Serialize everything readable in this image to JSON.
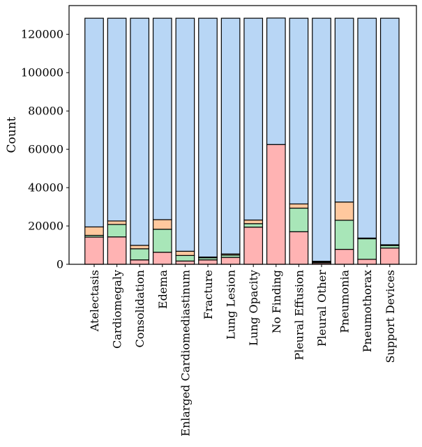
{
  "chart_data": {
    "type": "bar",
    "stacked": true,
    "title": "",
    "xlabel": "",
    "ylabel": "Count",
    "ylim": [
      0,
      135000
    ],
    "yticks": [
      0,
      20000,
      40000,
      60000,
      80000,
      100000,
      120000
    ],
    "categories": [
      "Atelectasis",
      "Cardiomegaly",
      "Consolidation",
      "Edema",
      "Enlarged Cardiomediastinum",
      "Fracture",
      "Lung Lesion",
      "Lung Opacity",
      "No Finding",
      "Pleural Effusion",
      "Pleural Other",
      "Pneumonia",
      "Pneumothorax",
      "Support Devices"
    ],
    "series": [
      {
        "color": "#ffb3b3",
        "values": [
          14200,
          14300,
          2300,
          6300,
          1700,
          2300,
          3600,
          19400,
          62500,
          17000,
          700,
          7800,
          2600,
          8500
        ]
      },
      {
        "color": "#a8e6b8",
        "values": [
          900,
          6500,
          5800,
          12000,
          2900,
          1100,
          1200,
          1800,
          0,
          12300,
          500,
          15200,
          10700,
          1300
        ]
      },
      {
        "color": "#ffc89e",
        "values": [
          4400,
          1800,
          1800,
          5000,
          2200,
          400,
          600,
          1900,
          0,
          2200,
          400,
          9500,
          400,
          400
        ]
      },
      {
        "color": "#b8d6f5",
        "values": [
          108900,
          105800,
          118500,
          105100,
          121600,
          124600,
          123000,
          105300,
          66000,
          96900,
          126800,
          95900,
          114700,
          118200
        ]
      }
    ]
  }
}
